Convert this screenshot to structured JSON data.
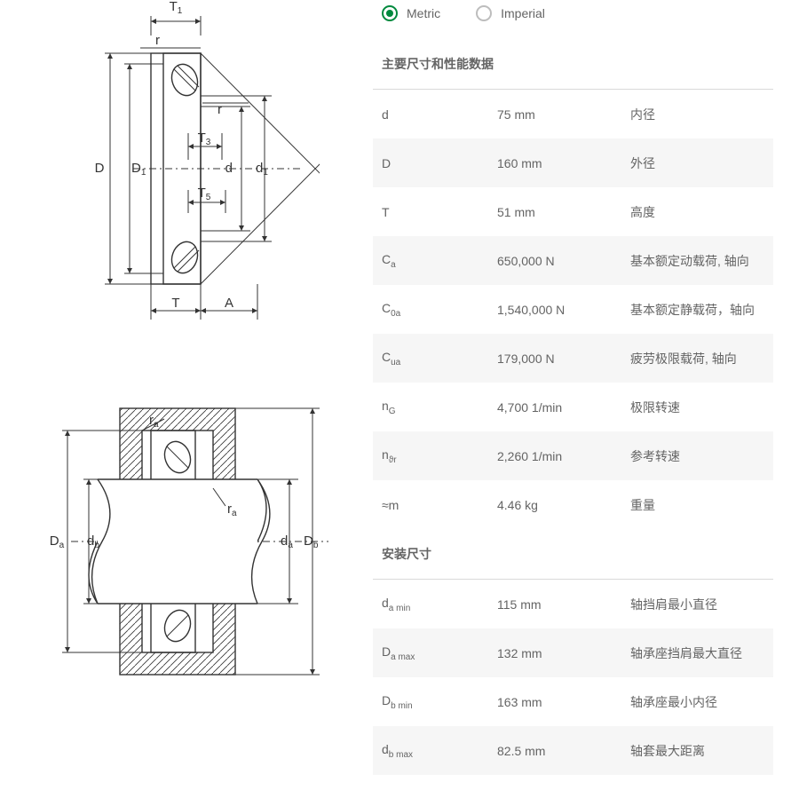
{
  "units": {
    "metric_label": "Metric",
    "imperial_label": "Imperial",
    "selected": "metric"
  },
  "colors": {
    "accent": "#00893d",
    "text": "#646464",
    "divider": "#d9d9d9",
    "row_alt_bg": "#f6f6f6",
    "diagram_stroke": "#333333",
    "background": "#ffffff"
  },
  "diagrams": {
    "top": {
      "labels": [
        "T",
        "T₁",
        "T₃",
        "T₅",
        "r",
        "D",
        "D₁",
        "d",
        "d₁",
        "A"
      ]
    },
    "bottom": {
      "labels": [
        "rₐ",
        "Dₐ",
        "d_b",
        "dₐ",
        "D_b"
      ]
    }
  },
  "sections": [
    {
      "title": "主要尺寸和性能数据",
      "rows": [
        {
          "symbol_html": "d",
          "value": "75 mm",
          "desc": "内径",
          "alt": false
        },
        {
          "symbol_html": "D",
          "value": "160 mm",
          "desc": "外径",
          "alt": true
        },
        {
          "symbol_html": "T",
          "value": "51 mm",
          "desc": "高度",
          "alt": false
        },
        {
          "symbol_html": "C<sub>a</sub>",
          "value": "650,000 N",
          "desc": "基本额定动载荷, 轴向",
          "alt": true
        },
        {
          "symbol_html": "C<sub>0a</sub>",
          "value": "1,540,000 N",
          "desc": "基本额定静载荷，轴向",
          "alt": false
        },
        {
          "symbol_html": "C<sub>ua</sub>",
          "value": "179,000 N",
          "desc": "疲劳极限载荷, 轴向",
          "alt": true
        },
        {
          "symbol_html": "n<sub>G</sub>",
          "value": "4,700 1/min",
          "desc": "极限转速",
          "alt": false
        },
        {
          "symbol_html": "n<sub>ϑr</sub>",
          "value": "2,260 1/min",
          "desc": "参考转速",
          "alt": true
        },
        {
          "symbol_html": "≈m",
          "value": "4.46 kg",
          "desc": "重量",
          "alt": false
        }
      ]
    },
    {
      "title": "安装尺寸",
      "rows": [
        {
          "symbol_html": "d<sub>a min</sub>",
          "value": "115 mm",
          "desc": "轴挡肩最小直径",
          "alt": false
        },
        {
          "symbol_html": "D<sub>a max</sub>",
          "value": "132 mm",
          "desc": "轴承座挡肩最大直径",
          "alt": true
        },
        {
          "symbol_html": "D<sub>b min</sub>",
          "value": "163 mm",
          "desc": "轴承座最小内径",
          "alt": false
        },
        {
          "symbol_html": "d<sub>b max</sub>",
          "value": "82.5 mm",
          "desc": "轴套最大距离",
          "alt": true
        }
      ]
    }
  ]
}
